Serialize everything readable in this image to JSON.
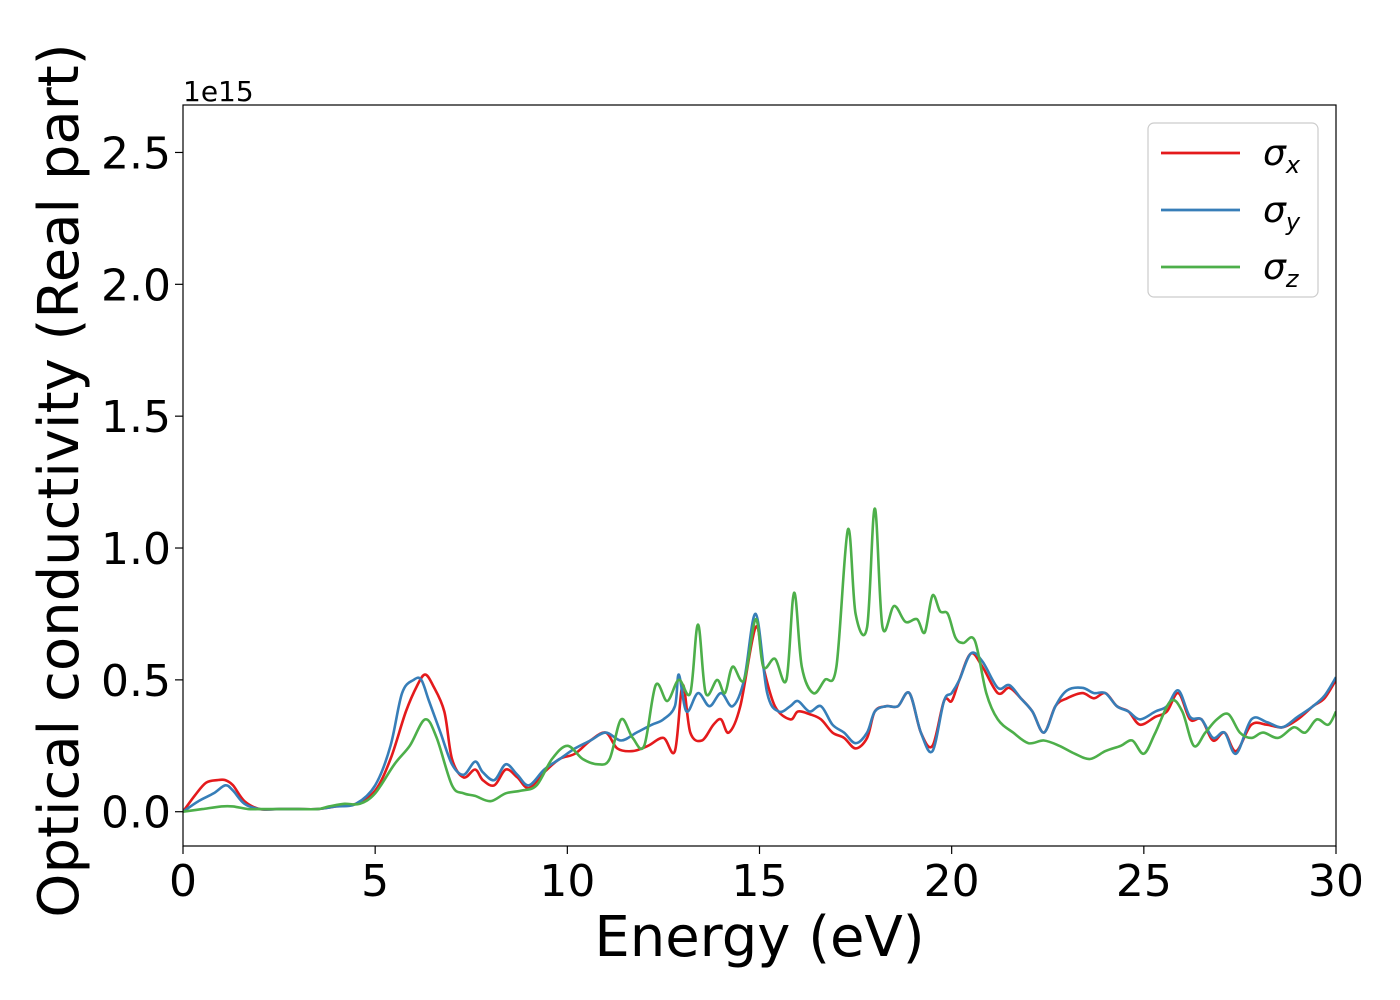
{
  "chart_data": {
    "type": "line",
    "title": "",
    "xlabel": "Energy (eV)",
    "ylabel": "Optical conductivity (Real part)",
    "y_offset_label": "1e15",
    "xlim": [
      0,
      30
    ],
    "ylim": [
      -0.13,
      2.68
    ],
    "x_ticks": [
      0,
      5,
      10,
      15,
      20,
      25,
      30
    ],
    "x_tick_labels": [
      "0",
      "5",
      "10",
      "15",
      "20",
      "25",
      "30"
    ],
    "y_ticks": [
      0.0,
      0.5,
      1.0,
      1.5,
      2.0,
      2.5
    ],
    "y_tick_labels": [
      "0.0",
      "0.5",
      "1.0",
      "1.5",
      "2.0",
      "2.5"
    ],
    "grid": false,
    "legend_position": "top-right",
    "series": [
      {
        "name": "σ_x",
        "symbol": "σ",
        "subscript": "x",
        "color": "#e41a1c",
        "x": [
          0,
          0.3,
          0.6,
          0.9,
          1.1,
          1.3,
          1.6,
          2.0,
          2.5,
          3.0,
          3.5,
          4.0,
          4.5,
          5.0,
          5.4,
          5.8,
          6.1,
          6.3,
          6.5,
          6.8,
          7.0,
          7.3,
          7.6,
          7.8,
          8.1,
          8.4,
          8.7,
          9.0,
          9.4,
          9.8,
          10.2,
          10.6,
          11.0,
          11.3,
          11.7,
          12.1,
          12.5,
          12.8,
          13.0,
          13.2,
          13.5,
          13.8,
          14.0,
          14.2,
          14.5,
          14.9,
          15.1,
          15.4,
          15.8,
          16.0,
          16.3,
          16.6,
          16.9,
          17.2,
          17.5,
          17.8,
          18.0,
          18.3,
          18.6,
          18.9,
          19.2,
          19.5,
          19.8,
          20.0,
          20.2,
          20.5,
          20.8,
          21.2,
          21.5,
          21.8,
          22.1,
          22.4,
          22.7,
          23.0,
          23.4,
          23.7,
          24.0,
          24.3,
          24.6,
          24.9,
          25.3,
          25.6,
          25.9,
          26.2,
          26.5,
          26.8,
          27.1,
          27.4,
          27.8,
          28.2,
          28.6,
          29.0,
          29.4,
          29.7,
          30.0
        ],
        "y": [
          0.0,
          0.06,
          0.11,
          0.12,
          0.12,
          0.1,
          0.04,
          0.01,
          0.01,
          0.01,
          0.01,
          0.02,
          0.03,
          0.08,
          0.2,
          0.38,
          0.48,
          0.52,
          0.48,
          0.38,
          0.2,
          0.13,
          0.16,
          0.12,
          0.1,
          0.16,
          0.13,
          0.09,
          0.15,
          0.2,
          0.22,
          0.27,
          0.3,
          0.24,
          0.23,
          0.25,
          0.28,
          0.23,
          0.48,
          0.3,
          0.27,
          0.33,
          0.35,
          0.3,
          0.4,
          0.7,
          0.55,
          0.4,
          0.35,
          0.38,
          0.37,
          0.35,
          0.3,
          0.28,
          0.24,
          0.28,
          0.38,
          0.4,
          0.4,
          0.45,
          0.3,
          0.25,
          0.42,
          0.42,
          0.5,
          0.6,
          0.55,
          0.45,
          0.47,
          0.43,
          0.38,
          0.3,
          0.4,
          0.43,
          0.45,
          0.43,
          0.45,
          0.4,
          0.38,
          0.33,
          0.36,
          0.38,
          0.45,
          0.35,
          0.35,
          0.27,
          0.3,
          0.23,
          0.33,
          0.33,
          0.32,
          0.35,
          0.4,
          0.43,
          0.5
        ]
      },
      {
        "name": "σ_y",
        "symbol": "σ",
        "subscript": "y",
        "color": "#377eb8",
        "x": [
          0,
          0.4,
          0.8,
          1.1,
          1.3,
          1.6,
          2.0,
          2.5,
          3.0,
          3.5,
          4.0,
          4.5,
          5.0,
          5.4,
          5.7,
          6.0,
          6.2,
          6.4,
          6.7,
          7.0,
          7.3,
          7.6,
          7.8,
          8.1,
          8.4,
          8.7,
          9.0,
          9.4,
          9.8,
          10.2,
          10.6,
          11.0,
          11.4,
          11.8,
          12.2,
          12.5,
          12.8,
          12.9,
          13.1,
          13.4,
          13.7,
          14.0,
          14.3,
          14.6,
          14.9,
          15.2,
          15.5,
          15.8,
          16.0,
          16.3,
          16.6,
          16.9,
          17.2,
          17.5,
          17.8,
          18.0,
          18.3,
          18.6,
          18.9,
          19.2,
          19.5,
          19.8,
          20.0,
          20.2,
          20.5,
          20.8,
          21.2,
          21.5,
          21.8,
          22.1,
          22.4,
          22.7,
          23.0,
          23.4,
          23.7,
          24.0,
          24.3,
          24.6,
          24.9,
          25.3,
          25.6,
          25.9,
          26.2,
          26.5,
          26.8,
          27.1,
          27.4,
          27.8,
          28.2,
          28.6,
          29.0,
          29.4,
          29.7,
          30.0
        ],
        "y": [
          0.0,
          0.04,
          0.07,
          0.1,
          0.08,
          0.03,
          0.01,
          0.01,
          0.01,
          0.01,
          0.02,
          0.03,
          0.1,
          0.25,
          0.45,
          0.5,
          0.5,
          0.42,
          0.3,
          0.18,
          0.14,
          0.19,
          0.15,
          0.12,
          0.18,
          0.14,
          0.1,
          0.16,
          0.2,
          0.24,
          0.27,
          0.3,
          0.27,
          0.3,
          0.33,
          0.35,
          0.4,
          0.52,
          0.38,
          0.45,
          0.4,
          0.45,
          0.4,
          0.5,
          0.75,
          0.45,
          0.38,
          0.4,
          0.42,
          0.38,
          0.4,
          0.33,
          0.3,
          0.26,
          0.3,
          0.38,
          0.4,
          0.4,
          0.45,
          0.3,
          0.23,
          0.42,
          0.45,
          0.5,
          0.6,
          0.57,
          0.47,
          0.48,
          0.43,
          0.38,
          0.3,
          0.4,
          0.46,
          0.47,
          0.45,
          0.45,
          0.4,
          0.38,
          0.35,
          0.38,
          0.4,
          0.46,
          0.36,
          0.35,
          0.28,
          0.3,
          0.22,
          0.35,
          0.34,
          0.32,
          0.36,
          0.4,
          0.44,
          0.51
        ]
      },
      {
        "name": "σ_z",
        "symbol": "σ",
        "subscript": "z",
        "color": "#4daf4a",
        "x": [
          0,
          0.5,
          1.0,
          1.3,
          1.7,
          2.0,
          2.5,
          3.0,
          3.5,
          3.8,
          4.2,
          4.6,
          5.0,
          5.5,
          5.9,
          6.3,
          6.6,
          7.0,
          7.3,
          7.6,
          8.0,
          8.4,
          8.8,
          9.2,
          9.6,
          10.0,
          10.4,
          10.8,
          11.1,
          11.4,
          11.7,
          12.0,
          12.3,
          12.6,
          12.9,
          13.2,
          13.4,
          13.6,
          13.9,
          14.1,
          14.3,
          14.6,
          14.9,
          15.1,
          15.4,
          15.7,
          15.9,
          16.1,
          16.4,
          16.7,
          17.0,
          17.3,
          17.5,
          17.8,
          18.0,
          18.2,
          18.5,
          18.8,
          19.1,
          19.3,
          19.5,
          19.7,
          19.9,
          20.1,
          20.3,
          20.6,
          20.9,
          21.2,
          21.6,
          22.0,
          22.4,
          22.8,
          23.2,
          23.6,
          24.0,
          24.4,
          24.7,
          25.0,
          25.3,
          25.7,
          26.0,
          26.3,
          26.6,
          26.9,
          27.2,
          27.5,
          27.8,
          28.1,
          28.5,
          28.9,
          29.2,
          29.5,
          29.8,
          30.0
        ],
        "y": [
          0.0,
          0.01,
          0.02,
          0.02,
          0.01,
          0.01,
          0.01,
          0.01,
          0.01,
          0.02,
          0.03,
          0.03,
          0.07,
          0.18,
          0.25,
          0.35,
          0.28,
          0.1,
          0.07,
          0.06,
          0.04,
          0.07,
          0.08,
          0.1,
          0.2,
          0.25,
          0.2,
          0.18,
          0.2,
          0.35,
          0.28,
          0.25,
          0.48,
          0.42,
          0.5,
          0.45,
          0.71,
          0.45,
          0.5,
          0.45,
          0.55,
          0.5,
          0.73,
          0.55,
          0.58,
          0.5,
          0.83,
          0.55,
          0.45,
          0.5,
          0.55,
          1.07,
          0.75,
          0.7,
          1.15,
          0.7,
          0.78,
          0.72,
          0.73,
          0.68,
          0.82,
          0.76,
          0.75,
          0.66,
          0.64,
          0.65,
          0.45,
          0.35,
          0.3,
          0.26,
          0.27,
          0.25,
          0.22,
          0.2,
          0.23,
          0.25,
          0.27,
          0.22,
          0.3,
          0.42,
          0.38,
          0.25,
          0.3,
          0.35,
          0.37,
          0.3,
          0.28,
          0.3,
          0.28,
          0.32,
          0.3,
          0.35,
          0.33,
          0.38
        ]
      }
    ]
  }
}
